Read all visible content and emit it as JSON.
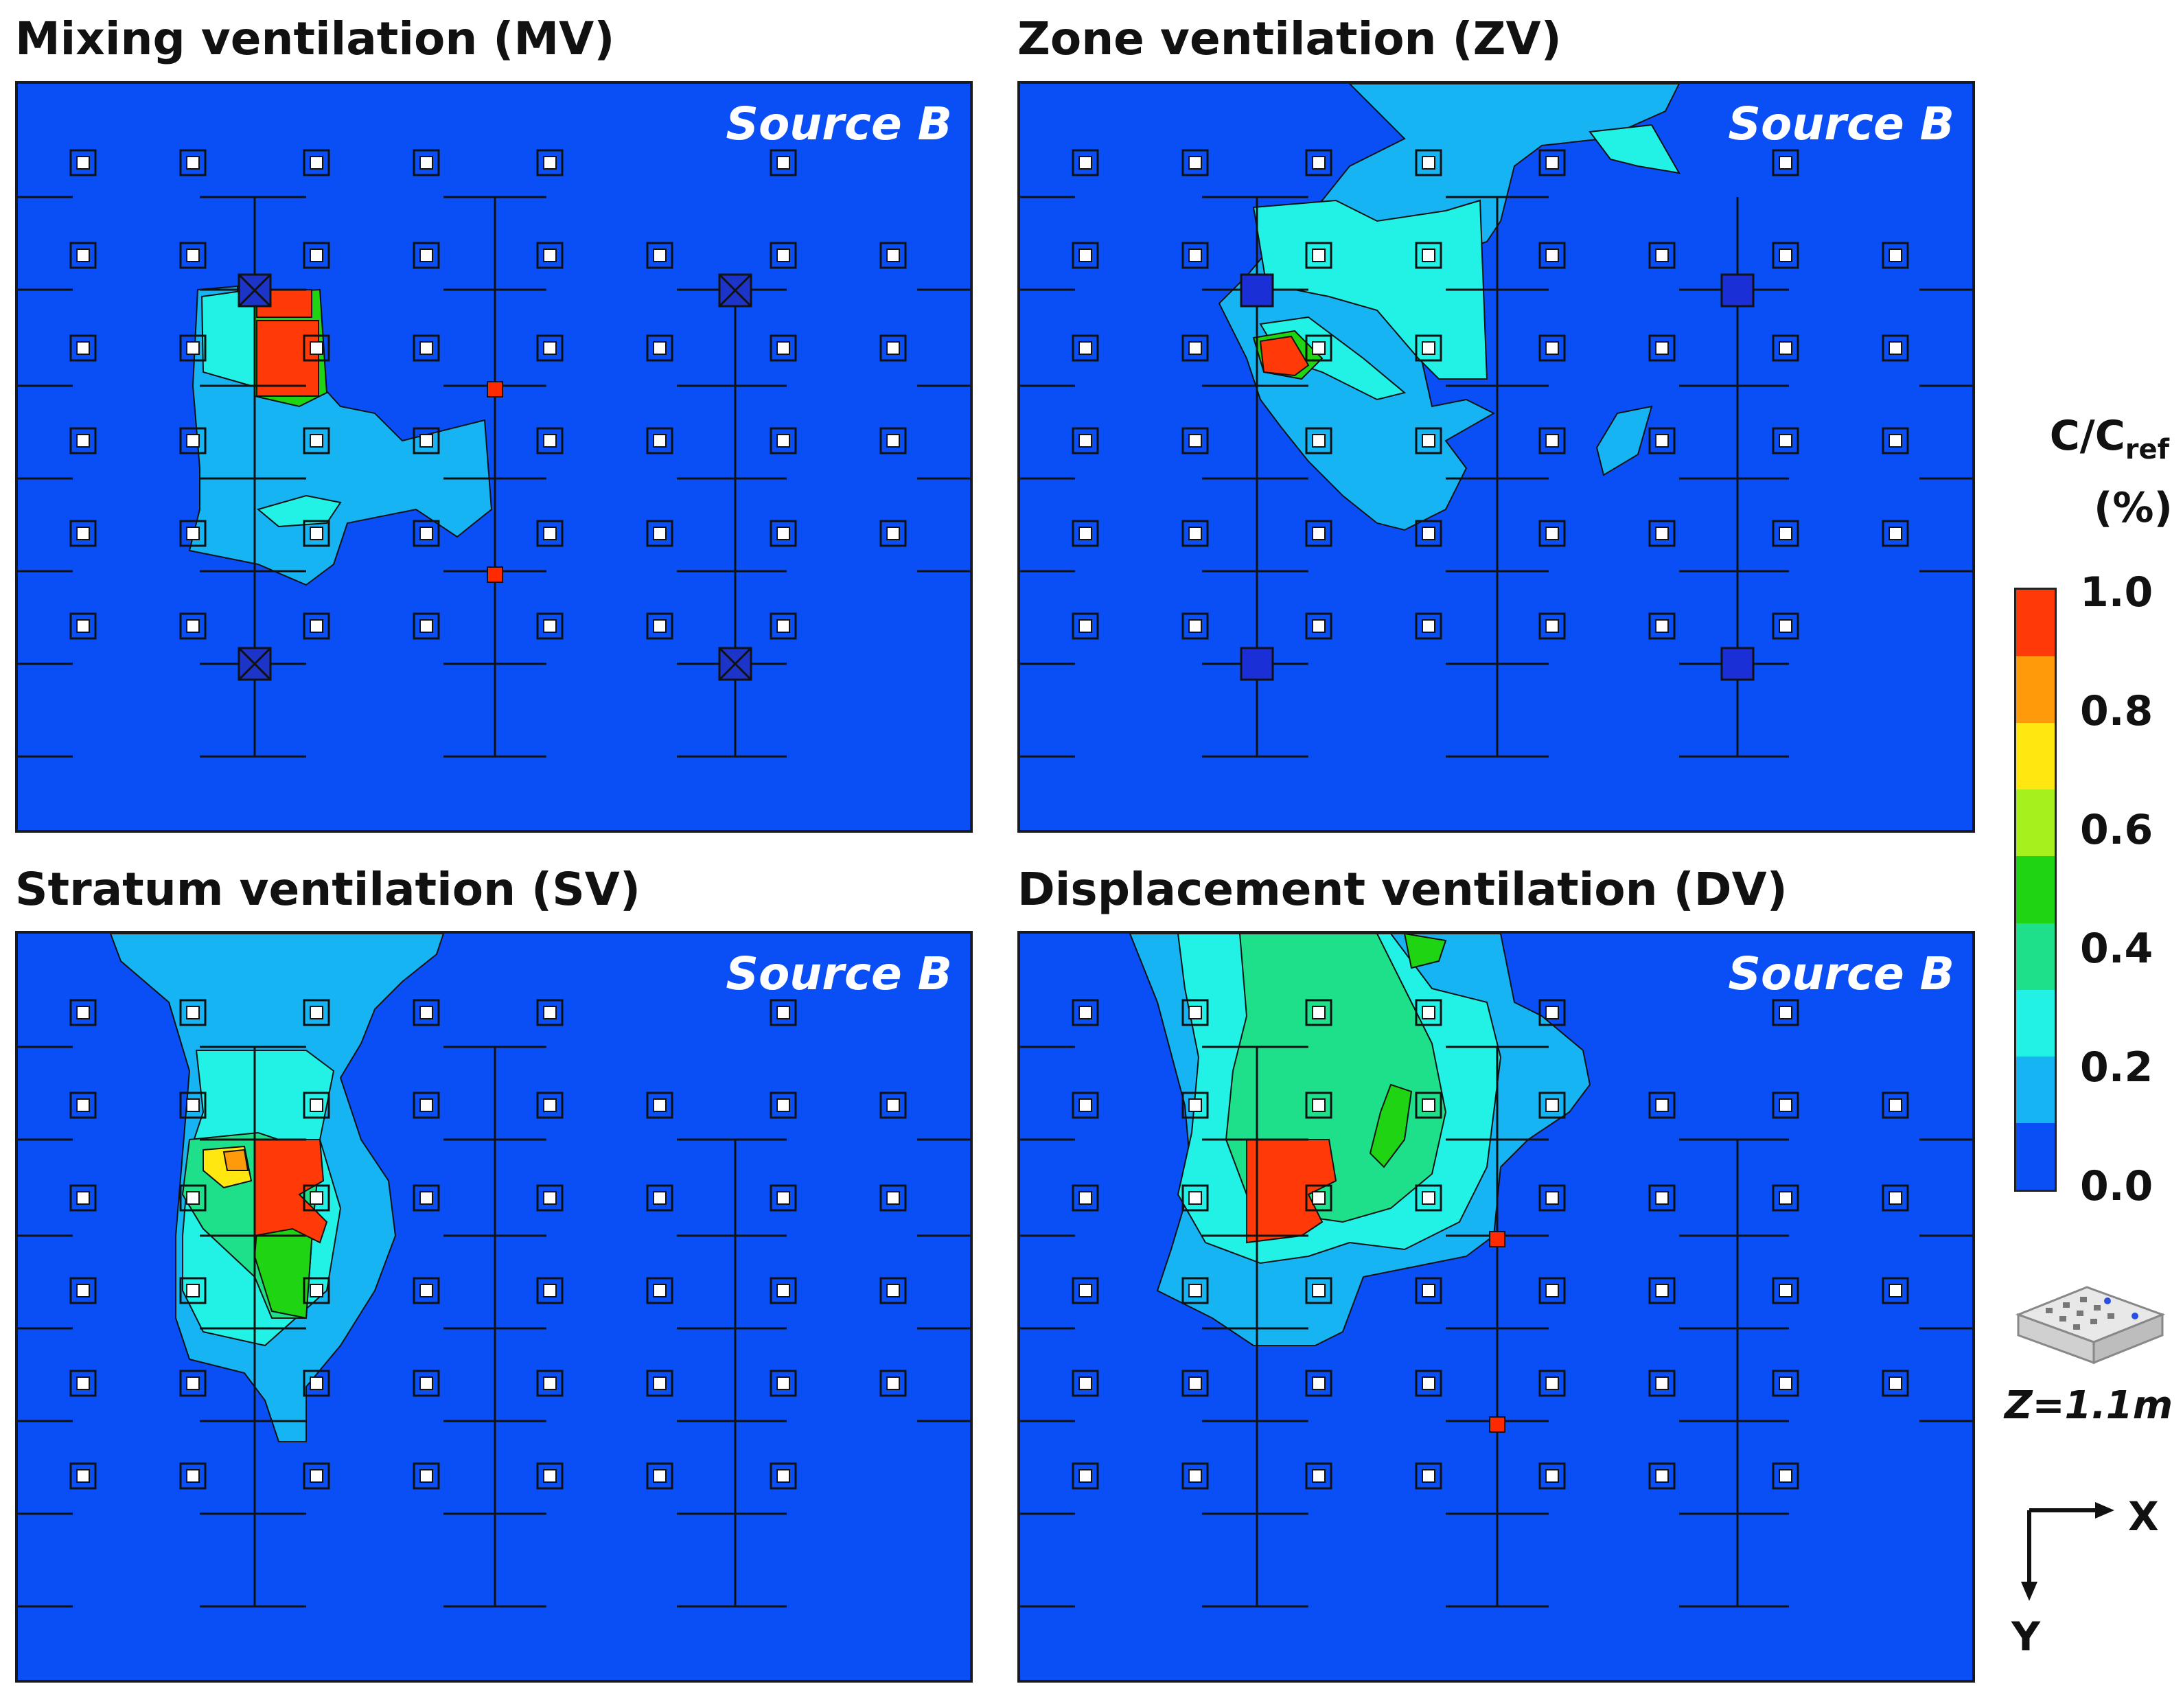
{
  "panels": [
    {
      "title": "Mixing ventilation (MV)",
      "source_label": "Source B"
    },
    {
      "title": "Zone ventilation (ZV)",
      "source_label": "Source B"
    },
    {
      "title": "Stratum ventilation (SV)",
      "source_label": "Source B"
    },
    {
      "title": "Displacement ventilation (DV)",
      "source_label": "Source B"
    }
  ],
  "legend": {
    "title": "C/C",
    "title_sub": "ref",
    "unit": "(%)",
    "ticks": [
      "1.0",
      "0.8",
      "0.6",
      "0.4",
      "0.2",
      "0.0"
    ],
    "colors": [
      "#ff3a08",
      "#ff9a0a",
      "#ffe70f",
      "#a6f01e",
      "#1fd413",
      "#1fe08a",
      "#22f2e6",
      "#17b4f4",
      "#0a4ef5"
    ]
  },
  "inset_label": "Z=1.1m",
  "axes": {
    "x": "X",
    "y": "Y"
  },
  "colors": {
    "background": "#0a4ef5",
    "level_01": "#17b4f4",
    "level_02": "#22f2e6",
    "level_04": "#1fe08a",
    "level_05": "#1fd413",
    "level_07": "#ffe70f",
    "level_08": "#ff9a0a",
    "level_10": "#ff3a08"
  }
}
